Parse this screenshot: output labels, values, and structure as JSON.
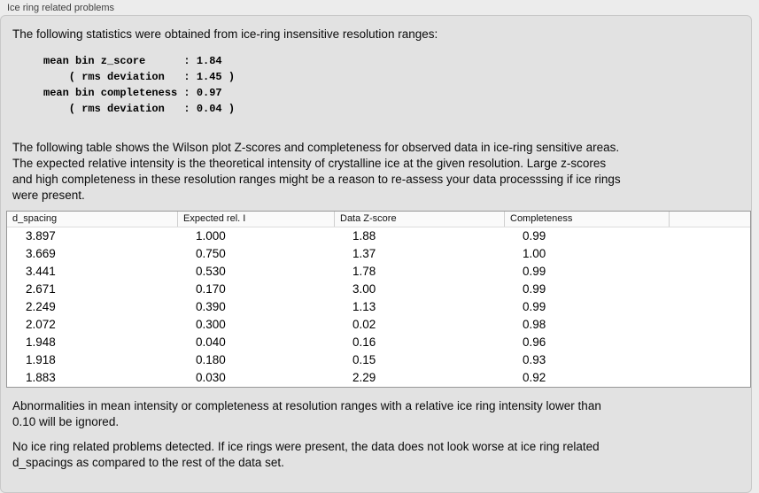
{
  "panel": {
    "title": "Ice ring related problems"
  },
  "stats": {
    "intro": "The following statistics were obtained from ice-ring insensitive resolution ranges:",
    "block": "mean bin z_score      : 1.84\n    ( rms deviation   : 1.45 )\nmean bin completeness : 0.97\n    ( rms deviation   : 0.04 )",
    "values": {
      "mean_bin_z_score": "1.84",
      "z_score_rms_deviation": "1.45",
      "mean_bin_completeness": "0.97",
      "completeness_rms_deviation": "0.04"
    }
  },
  "table_description": "The following table shows the Wilson plot Z-scores and completeness for observed data in ice-ring sensitive areas.\nThe expected relative intensity is the theoretical intensity of crystalline ice at the given resolution. Large z-scores\nand high completeness in these resolution ranges might be a reason to re-assess your data processsing if ice rings\nwere present.",
  "table": {
    "columns": [
      "d_spacing",
      "Expected rel. I",
      "Data Z-score",
      "Completeness",
      ""
    ],
    "rows": [
      [
        "3.897",
        "1.000",
        "1.88",
        "0.99"
      ],
      [
        "3.669",
        "0.750",
        "1.37",
        "1.00"
      ],
      [
        "3.441",
        "0.530",
        "1.78",
        "0.99"
      ],
      [
        "2.671",
        "0.170",
        "3.00",
        "0.99"
      ],
      [
        "2.249",
        "0.390",
        "1.13",
        "0.99"
      ],
      [
        "2.072",
        "0.300",
        "0.02",
        "0.98"
      ],
      [
        "1.948",
        "0.040",
        "0.16",
        "0.96"
      ],
      [
        "1.918",
        "0.180",
        "0.15",
        "0.93"
      ],
      [
        "1.883",
        "0.030",
        "2.29",
        "0.92"
      ]
    ]
  },
  "notes": {
    "ignore_rule": "Abnormalities in mean intensity or completeness at resolution ranges with a relative ice ring intensity lower than\n0.10 will be ignored.",
    "verdict": "No ice ring related problems detected. If ice rings were present, the data does not look worse at ice ring related\nd_spacings as compared to the rest of the data set."
  },
  "colors": {
    "page_background": "#ececec",
    "panel_background": "#e2e2e2",
    "panel_border": "#c8c8c8",
    "table_border": "#979797",
    "table_background": "#ffffff"
  }
}
